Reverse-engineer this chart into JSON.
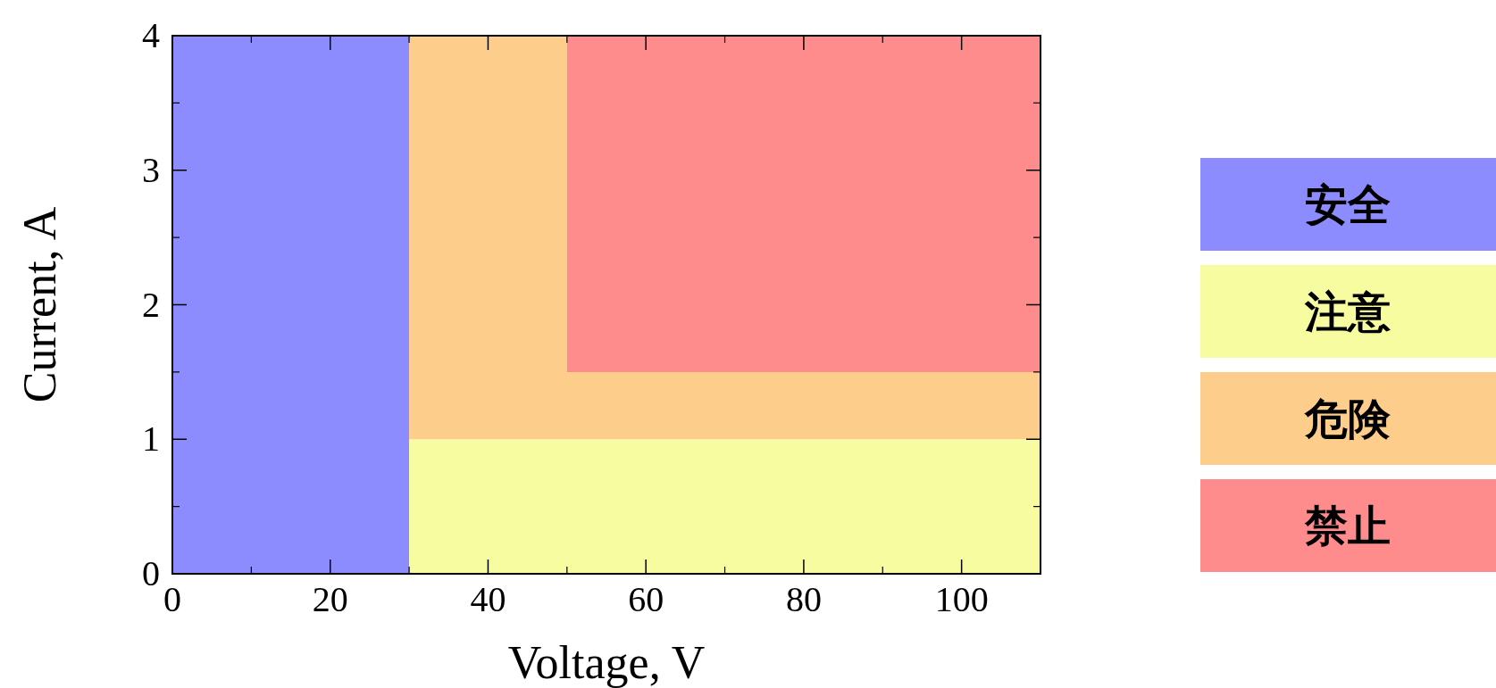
{
  "chart_data": {
    "type": "area",
    "stacked": true,
    "xlabel": "Voltage, V",
    "ylabel": "Current, A",
    "x": [
      0,
      30,
      30,
      50,
      50,
      110
    ],
    "series": [
      {
        "name": "安全",
        "color": "#8c8cff",
        "values": [
          4,
          4,
          null,
          null,
          null,
          null
        ]
      },
      {
        "name": "注意",
        "color": "#f8fca0",
        "values": [
          null,
          null,
          1,
          1,
          1,
          1
        ]
      },
      {
        "name": "危険",
        "color": "#fdcd8c",
        "values": [
          null,
          null,
          3,
          3,
          0.5,
          0.5
        ]
      },
      {
        "name": "禁止",
        "color": "#ff8c8c",
        "values": [
          null,
          null,
          null,
          null,
          2.5,
          2.5
        ]
      }
    ],
    "xlim": [
      0,
      110
    ],
    "ylim": [
      0,
      4
    ],
    "xticks": [
      0,
      20,
      40,
      60,
      80,
      100
    ],
    "yticks": [
      0,
      1,
      2,
      3,
      4
    ],
    "grid": false,
    "legend": "right"
  }
}
